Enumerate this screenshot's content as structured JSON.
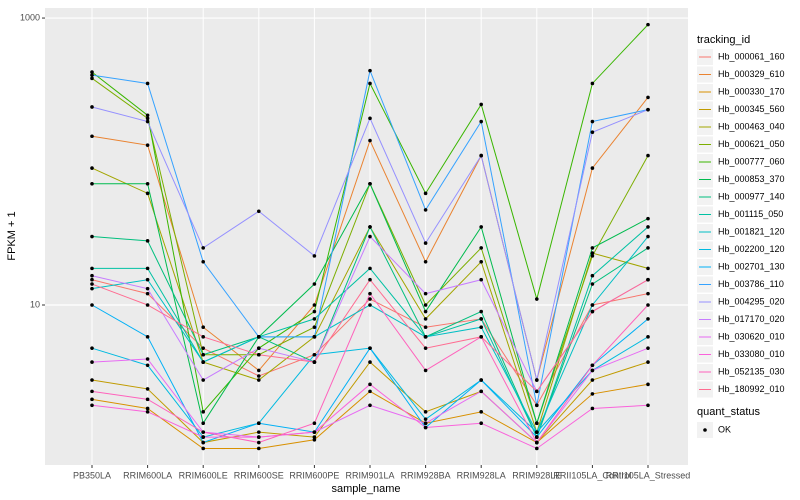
{
  "chart_data": {
    "type": "line",
    "x_label": "sample_name",
    "y_label": "FPKM + 1",
    "log_scale": true,
    "grid": true,
    "point_color": "#000000",
    "legend_title": "tracking_id",
    "shape_legend": {
      "title": "quant_status",
      "labels": [
        "OK"
      ]
    },
    "categories": [
      "PB350LA",
      "RRIM600LA",
      "RRIM600LE",
      "RRIM600SE",
      "RRIM600PE",
      "RRIM901LA",
      "RRIM928BA",
      "RRIM928LA",
      "RRIM928LE",
      "RRII105LA_Control",
      "RRII105LA_Stressed"
    ],
    "ylim": [
      0.767,
      1175
    ],
    "yticks": [
      10,
      1000
    ],
    "series": [
      {
        "name": "Hb_000061_160",
        "color": "#F8766D",
        "values": [
          15,
          12,
          5,
          3.2,
          4.5,
          11,
          7,
          8,
          2,
          10,
          12
        ]
      },
      {
        "name": "Hb_000329_610",
        "color": "#EA8331",
        "values": [
          150,
          130,
          7,
          3.5,
          10,
          140,
          20,
          110,
          3,
          90,
          280
        ]
      },
      {
        "name": "Hb_000330_170",
        "color": "#D89000",
        "values": [
          2.2,
          1.9,
          1.0,
          1.0,
          1.15,
          2.5,
          1.5,
          1.8,
          1.1,
          2.4,
          2.8
        ]
      },
      {
        "name": "Hb_000345_560",
        "color": "#C09B00",
        "values": [
          3,
          2.6,
          1.1,
          1.3,
          1.2,
          4,
          1.8,
          2.5,
          1.1,
          3,
          4
        ]
      },
      {
        "name": "Hb_000463_040",
        "color": "#A3A500",
        "values": [
          90,
          60,
          4,
          3,
          6,
          35,
          8,
          20,
          1.3,
          23,
          18
        ]
      },
      {
        "name": "Hb_000621_050",
        "color": "#7CAE00",
        "values": [
          380,
          200,
          4.5,
          4.5,
          7,
          70,
          10,
          25,
          1.5,
          22,
          110
        ]
      },
      {
        "name": "Hb_000777_060",
        "color": "#39B600",
        "values": [
          420,
          210,
          1.8,
          5,
          9,
          350,
          60,
          250,
          11,
          350,
          900
        ]
      },
      {
        "name": "Hb_000853_370",
        "color": "#00BB4E",
        "values": [
          70,
          70,
          1.5,
          6,
          14,
          70,
          9,
          35,
          1.5,
          25,
          40
        ]
      },
      {
        "name": "Hb_000977_140",
        "color": "#00BF7D",
        "values": [
          30,
          28,
          4.5,
          6,
          4,
          35,
          6,
          9,
          1.2,
          14,
          25
        ]
      },
      {
        "name": "Hb_001115_050",
        "color": "#00C1A3",
        "values": [
          18,
          18,
          4,
          6,
          8,
          18,
          6,
          8,
          1.2,
          16,
          35
        ]
      },
      {
        "name": "Hb_001821_120",
        "color": "#00BFC4",
        "values": [
          13,
          15,
          4,
          6,
          6,
          10,
          6,
          7,
          1.3,
          10,
          30
        ]
      },
      {
        "name": "Hb_002200_120",
        "color": "#00BAE0",
        "values": [
          5,
          3.8,
          1.2,
          1.5,
          4.5,
          5,
          1.6,
          3,
          1.3,
          3.5,
          6
        ]
      },
      {
        "name": "Hb_002701_130",
        "color": "#00B0F6",
        "values": [
          10,
          6,
          1.1,
          1.5,
          1.3,
          5,
          1.4,
          3,
          1.2,
          3.8,
          8
        ]
      },
      {
        "name": "Hb_003786_110",
        "color": "#35A2FF",
        "values": [
          400,
          350,
          20,
          6,
          6,
          430,
          46,
          190,
          2,
          190,
          230
        ]
      },
      {
        "name": "Hb_004295_020",
        "color": "#9590FF",
        "values": [
          240,
          190,
          25,
          45,
          22,
          200,
          27,
          110,
          3,
          160,
          230
        ]
      },
      {
        "name": "Hb_017170_020",
        "color": "#C77CFF",
        "values": [
          16,
          13,
          3,
          5,
          4,
          30,
          12,
          15,
          2.5,
          9,
          15
        ]
      },
      {
        "name": "Hb_030620_010",
        "color": "#E76BF3",
        "values": [
          4,
          4.2,
          1.3,
          1.2,
          1.3,
          2,
          1.5,
          2.5,
          1.1,
          3.5,
          5
        ]
      },
      {
        "name": "Hb_033080_010",
        "color": "#FA62DB",
        "values": [
          2,
          1.8,
          1.2,
          1.2,
          1.3,
          2.8,
          1.4,
          1.5,
          1.0,
          1.9,
          2
        ]
      },
      {
        "name": "Hb_052135_030",
        "color": "#FF62BC",
        "values": [
          2.5,
          2.2,
          1.3,
          1.1,
          1.5,
          12,
          3.5,
          6,
          1.1,
          3.8,
          10
        ]
      },
      {
        "name": "Hb_180992_010",
        "color": "#FF6C91",
        "values": [
          14,
          10,
          6,
          4.5,
          4,
          15,
          5,
          6,
          2.5,
          9,
          15
        ]
      }
    ]
  }
}
